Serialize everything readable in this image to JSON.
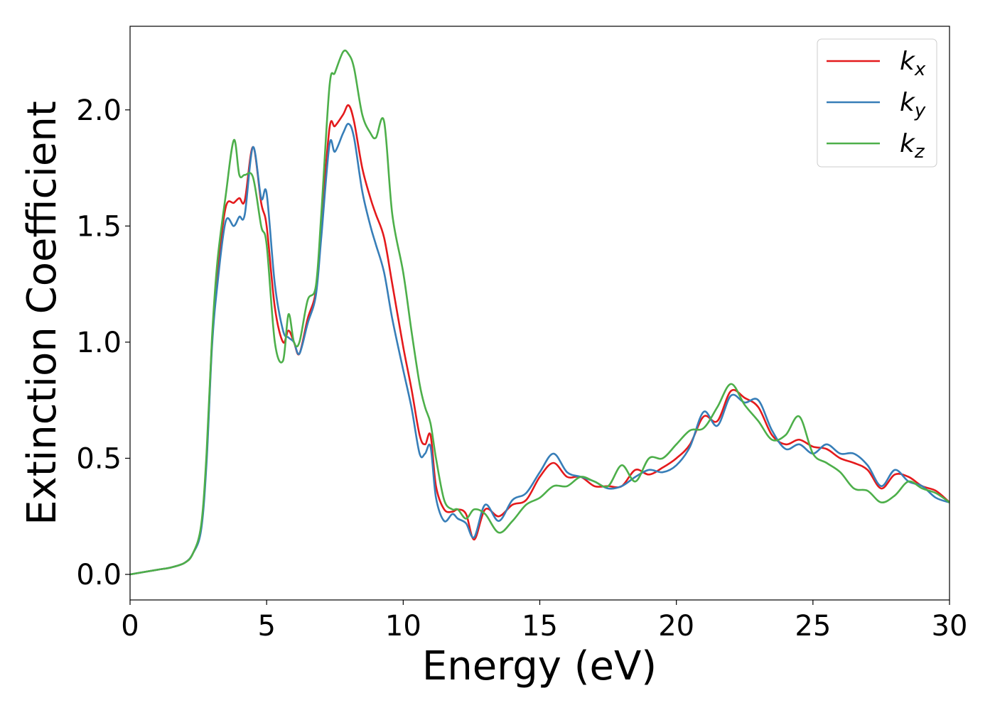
{
  "chart_data": {
    "type": "line",
    "title": "",
    "xlabel": "Energy (eV)",
    "ylabel": "Extinction Coefficient",
    "xlim": [
      0,
      30
    ],
    "ylim": [
      -0.11,
      2.36
    ],
    "xticks": [
      0,
      5,
      10,
      15,
      20,
      25,
      30
    ],
    "xtick_labels": [
      "0",
      "5",
      "10",
      "15",
      "20",
      "25",
      "30"
    ],
    "yticks": [
      0.0,
      0.5,
      1.0,
      1.5,
      2.0
    ],
    "ytick_labels": [
      "0.0",
      "0.5",
      "1.0",
      "1.5",
      "2.0"
    ],
    "grid": false,
    "legend_position": "top-right",
    "series": [
      {
        "name": "k",
        "subscript": "x",
        "color": "#e41a1c",
        "x": [
          0,
          1,
          1.5,
          2,
          2.3,
          2.6,
          2.8,
          3.0,
          3.2,
          3.5,
          3.8,
          4.0,
          4.2,
          4.5,
          4.8,
          5.0,
          5.3,
          5.6,
          5.8,
          6.0,
          6.2,
          6.5,
          6.8,
          7.0,
          7.3,
          7.5,
          7.8,
          8.0,
          8.2,
          8.5,
          8.8,
          9.0,
          9.3,
          9.6,
          10.0,
          10.3,
          10.6,
          10.8,
          11.0,
          11.2,
          11.5,
          11.8,
          12.0,
          12.3,
          12.6,
          13.0,
          13.5,
          14.0,
          14.5,
          15.0,
          15.5,
          16.0,
          16.5,
          17.0,
          17.5,
          18.0,
          18.5,
          19.0,
          19.5,
          20.0,
          20.5,
          21.0,
          21.5,
          22.0,
          22.5,
          23.0,
          23.5,
          24.0,
          24.5,
          25.0,
          25.5,
          26.0,
          26.5,
          27.0,
          27.5,
          28.0,
          28.5,
          29.0,
          29.5,
          30.0
        ],
        "y": [
          0.0,
          0.02,
          0.03,
          0.05,
          0.09,
          0.2,
          0.5,
          1.0,
          1.3,
          1.58,
          1.6,
          1.62,
          1.61,
          1.84,
          1.6,
          1.5,
          1.15,
          1.0,
          1.05,
          1.0,
          0.95,
          1.1,
          1.22,
          1.5,
          1.92,
          1.93,
          1.98,
          2.02,
          1.95,
          1.75,
          1.62,
          1.55,
          1.45,
          1.25,
          0.98,
          0.8,
          0.6,
          0.56,
          0.6,
          0.38,
          0.28,
          0.27,
          0.28,
          0.26,
          0.15,
          0.28,
          0.25,
          0.3,
          0.32,
          0.42,
          0.48,
          0.42,
          0.42,
          0.38,
          0.38,
          0.38,
          0.45,
          0.43,
          0.46,
          0.5,
          0.56,
          0.68,
          0.66,
          0.79,
          0.76,
          0.72,
          0.6,
          0.56,
          0.58,
          0.55,
          0.54,
          0.5,
          0.48,
          0.45,
          0.37,
          0.43,
          0.42,
          0.38,
          0.36,
          0.31
        ]
      },
      {
        "name": "k",
        "subscript": "y",
        "color": "#377eb8",
        "x": [
          0,
          1,
          1.5,
          2,
          2.3,
          2.6,
          2.8,
          3.0,
          3.2,
          3.5,
          3.8,
          4.0,
          4.2,
          4.5,
          4.8,
          5.0,
          5.3,
          5.6,
          5.8,
          6.0,
          6.2,
          6.5,
          6.8,
          7.0,
          7.3,
          7.5,
          7.8,
          8.0,
          8.2,
          8.5,
          8.8,
          9.0,
          9.3,
          9.6,
          10.0,
          10.3,
          10.6,
          10.8,
          11.0,
          11.2,
          11.5,
          11.8,
          12.0,
          12.3,
          12.6,
          13.0,
          13.5,
          14.0,
          14.5,
          15.0,
          15.5,
          16.0,
          16.5,
          17.0,
          17.5,
          18.0,
          18.5,
          19.0,
          19.5,
          20.0,
          20.5,
          21.0,
          21.5,
          22.0,
          22.5,
          23.0,
          23.5,
          24.0,
          24.5,
          25.0,
          25.5,
          26.0,
          26.5,
          27.0,
          27.5,
          28.0,
          28.5,
          29.0,
          29.5,
          30.0
        ],
        "y": [
          0.0,
          0.02,
          0.03,
          0.05,
          0.09,
          0.19,
          0.48,
          0.98,
          1.25,
          1.52,
          1.5,
          1.54,
          1.55,
          1.84,
          1.62,
          1.64,
          1.25,
          1.05,
          1.02,
          1.0,
          0.95,
          1.08,
          1.2,
          1.45,
          1.85,
          1.82,
          1.9,
          1.94,
          1.88,
          1.65,
          1.5,
          1.42,
          1.3,
          1.1,
          0.88,
          0.72,
          0.52,
          0.52,
          0.55,
          0.33,
          0.23,
          0.26,
          0.24,
          0.22,
          0.16,
          0.3,
          0.23,
          0.32,
          0.35,
          0.44,
          0.52,
          0.44,
          0.42,
          0.4,
          0.37,
          0.38,
          0.42,
          0.45,
          0.44,
          0.47,
          0.55,
          0.7,
          0.64,
          0.77,
          0.74,
          0.75,
          0.62,
          0.54,
          0.56,
          0.52,
          0.56,
          0.52,
          0.52,
          0.47,
          0.38,
          0.45,
          0.4,
          0.38,
          0.33,
          0.31
        ]
      },
      {
        "name": "k",
        "subscript": "z",
        "color": "#4daf4a",
        "x": [
          0,
          1,
          1.5,
          2,
          2.3,
          2.6,
          2.8,
          3.0,
          3.2,
          3.5,
          3.8,
          4.0,
          4.2,
          4.5,
          4.8,
          5.0,
          5.3,
          5.6,
          5.8,
          6.0,
          6.2,
          6.5,
          6.8,
          7.0,
          7.3,
          7.5,
          7.8,
          8.0,
          8.2,
          8.5,
          8.8,
          9.0,
          9.3,
          9.6,
          10.0,
          10.3,
          10.6,
          10.8,
          11.0,
          11.2,
          11.5,
          11.8,
          12.0,
          12.3,
          12.6,
          13.0,
          13.5,
          14.0,
          14.5,
          15.0,
          15.5,
          16.0,
          16.5,
          17.0,
          17.5,
          18.0,
          18.5,
          19.0,
          19.5,
          20.0,
          20.5,
          21.0,
          21.5,
          22.0,
          22.5,
          23.0,
          23.5,
          24.0,
          24.5,
          25.0,
          25.5,
          26.0,
          26.5,
          27.0,
          27.5,
          28.0,
          28.5,
          29.0,
          29.5,
          30.0
        ],
        "y": [
          0.0,
          0.02,
          0.03,
          0.05,
          0.09,
          0.21,
          0.52,
          1.02,
          1.35,
          1.63,
          1.87,
          1.72,
          1.72,
          1.71,
          1.5,
          1.42,
          1.0,
          0.92,
          1.12,
          1.0,
          1.0,
          1.18,
          1.24,
          1.55,
          2.1,
          2.16,
          2.25,
          2.24,
          2.18,
          1.98,
          1.9,
          1.88,
          1.95,
          1.55,
          1.3,
          1.05,
          0.82,
          0.72,
          0.65,
          0.5,
          0.32,
          0.28,
          0.28,
          0.24,
          0.28,
          0.26,
          0.18,
          0.23,
          0.3,
          0.33,
          0.38,
          0.38,
          0.42,
          0.4,
          0.38,
          0.47,
          0.4,
          0.5,
          0.5,
          0.56,
          0.62,
          0.63,
          0.72,
          0.82,
          0.73,
          0.66,
          0.58,
          0.6,
          0.68,
          0.52,
          0.48,
          0.44,
          0.37,
          0.36,
          0.31,
          0.34,
          0.4,
          0.37,
          0.35,
          0.31
        ]
      }
    ]
  }
}
